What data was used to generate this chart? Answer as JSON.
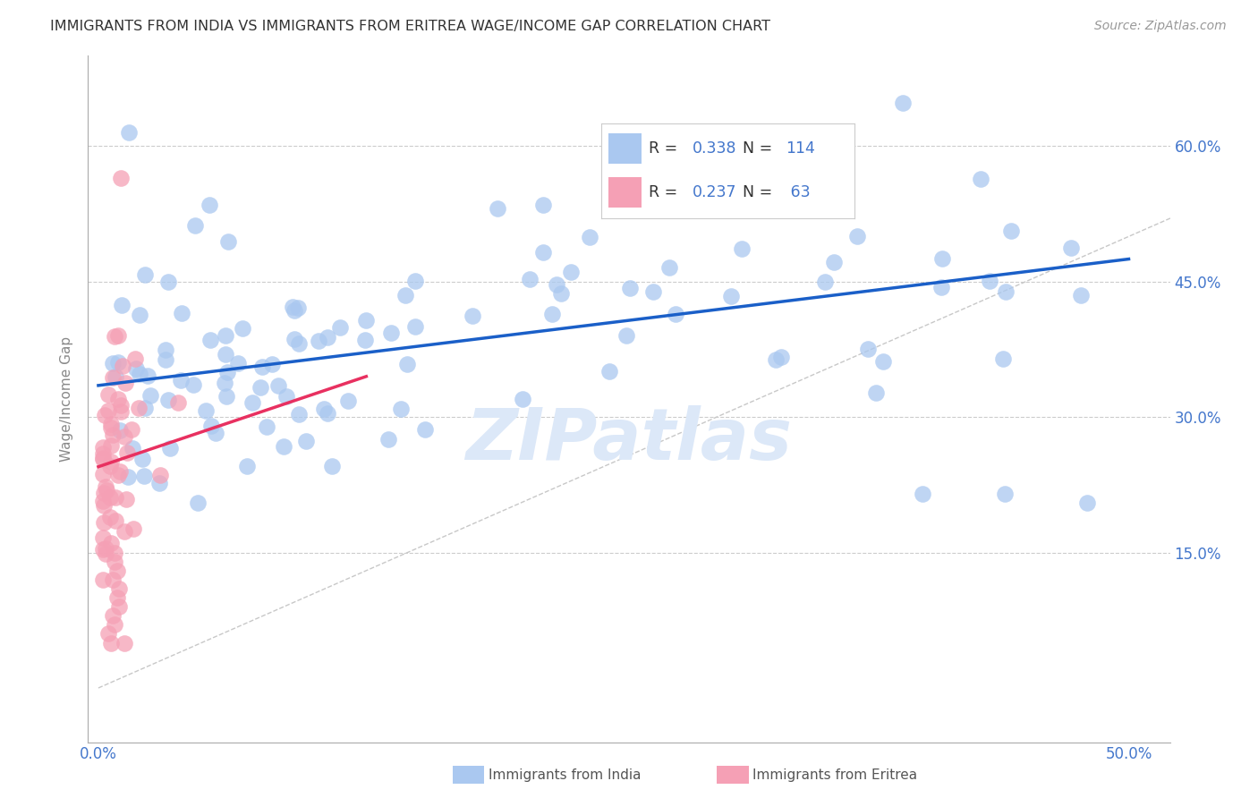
{
  "title": "IMMIGRANTS FROM INDIA VS IMMIGRANTS FROM ERITREA WAGE/INCOME GAP CORRELATION CHART",
  "source_text": "Source: ZipAtlas.com",
  "ylabel": "Wage/Income Gap",
  "xlim": [
    -0.005,
    0.52
  ],
  "ylim": [
    -0.06,
    0.7
  ],
  "xtick_positions": [
    0.0,
    0.1,
    0.2,
    0.3,
    0.4,
    0.5
  ],
  "xtick_labels": [
    "0.0%",
    "",
    "",
    "",
    "",
    "50.0%"
  ],
  "ytick_positions": [
    0.15,
    0.3,
    0.45,
    0.6
  ],
  "ytick_labels": [
    "15.0%",
    "30.0%",
    "45.0%",
    "60.0%"
  ],
  "india_color": "#aac8f0",
  "eritrea_color": "#f5a0b5",
  "india_trend_color": "#1a5fc8",
  "eritrea_trend_color": "#e83060",
  "ref_line_color": "#c8c8c8",
  "grid_color": "#cccccc",
  "axis_label_color": "#4477cc",
  "ylabel_color": "#888888",
  "title_color": "#333333",
  "source_color": "#999999",
  "watermark_text": "ZIPatlas",
  "watermark_color": "#dce8f8",
  "legend_india_label": "Immigrants from India",
  "legend_eritrea_label": "Immigrants from Eritrea",
  "india_R": "0.338",
  "india_N": "114",
  "eritrea_R": "0.237",
  "eritrea_N": "63",
  "india_trend_start_x": 0.0,
  "india_trend_start_y": 0.335,
  "india_trend_end_x": 0.5,
  "india_trend_end_y": 0.475,
  "eritrea_trend_start_x": 0.0,
  "eritrea_trend_start_y": 0.245,
  "eritrea_trend_end_x": 0.13,
  "eritrea_trend_end_y": 0.345
}
